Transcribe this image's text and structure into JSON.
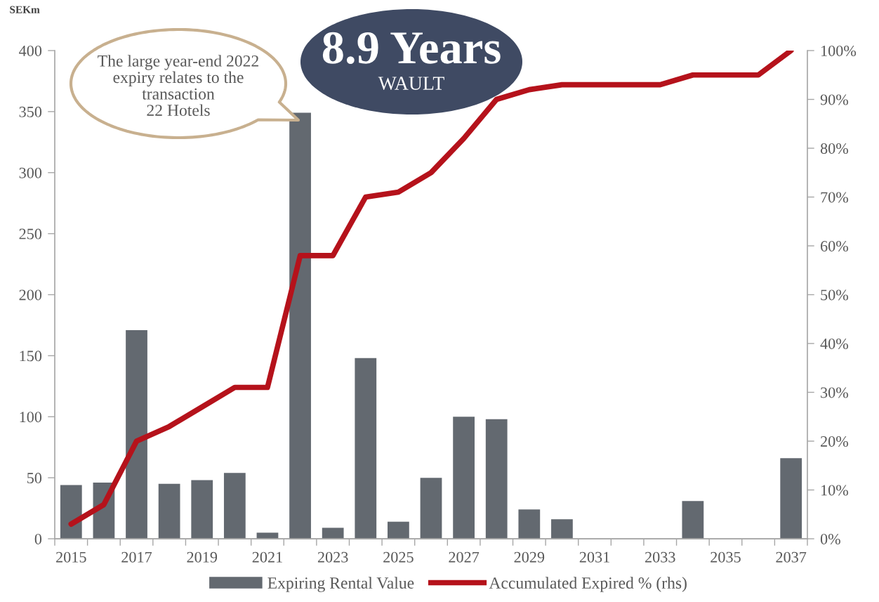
{
  "chart_data": {
    "type": "bar",
    "ylabel": "SEKm",
    "x": [
      2015,
      2016,
      2017,
      2018,
      2019,
      2020,
      2021,
      2022,
      2023,
      2024,
      2025,
      2026,
      2027,
      2028,
      2029,
      2030,
      2031,
      2032,
      2033,
      2034,
      2035,
      2036,
      2037
    ],
    "series": [
      {
        "name": "Expiring Rental Value",
        "color": "#636970",
        "values": [
          44,
          46,
          171,
          45,
          48,
          54,
          5,
          349,
          9,
          148,
          14,
          50,
          100,
          98,
          24,
          16,
          0,
          0,
          0,
          31,
          0,
          0,
          66
        ]
      },
      {
        "name": "Accumulated Expired % (rhs)",
        "type": "line",
        "axis": "y2",
        "color": "#b5121b",
        "values": [
          3,
          7,
          20,
          23,
          27,
          31,
          31,
          58,
          58,
          70,
          71,
          75,
          82,
          90,
          92,
          93,
          93,
          93,
          93,
          95,
          95,
          95,
          100
        ]
      }
    ],
    "xlim": [
      2014.5,
      2037.5
    ],
    "xticks": [
      2015,
      2017,
      2019,
      2021,
      2023,
      2025,
      2027,
      2029,
      2031,
      2033,
      2035,
      2037,
      {
        "value": 2014.5,
        "label": null
      },
      {
        "value": 2015.5,
        "label": null
      },
      {
        "value": 2016.5,
        "label": null
      },
      {
        "value": 2017.5,
        "label": null
      },
      {
        "value": 2018.5,
        "label": null
      },
      {
        "value": 2019.5,
        "label": null
      },
      {
        "value": 2020.5,
        "label": null
      },
      {
        "value": 2021.5,
        "label": null
      },
      {
        "value": 2022.5,
        "label": null
      },
      {
        "value": 2023.5,
        "label": null
      },
      {
        "value": 2024.5,
        "label": null
      },
      {
        "value": 2025.5,
        "label": null
      },
      {
        "value": 2026.5,
        "label": null
      },
      {
        "value": 2027.5,
        "label": null
      },
      {
        "value": 2028.5,
        "label": null
      },
      {
        "value": 2029.5,
        "label": null
      },
      {
        "value": 2030.5,
        "label": null
      },
      {
        "value": 2031.5,
        "label": null
      },
      {
        "value": 2032.5,
        "label": null
      },
      {
        "value": 2033.5,
        "label": null
      },
      {
        "value": 2034.5,
        "label": null
      },
      {
        "value": 2035.5,
        "label": null
      },
      {
        "value": 2036.5,
        "label": null
      },
      {
        "value": 2037.5,
        "label": null
      }
    ],
    "ylim": [
      0,
      400
    ],
    "yticks": [
      0,
      50,
      100,
      150,
      200,
      250,
      300,
      350,
      400
    ],
    "y2lim": [
      0,
      100
    ],
    "y2ticks": [
      {
        "value": 0,
        "label": "0%"
      },
      {
        "value": 10,
        "label": "10%"
      },
      {
        "value": 20,
        "label": "20%"
      },
      {
        "value": 30,
        "label": "30%"
      },
      {
        "value": 40,
        "label": "40%"
      },
      {
        "value": 50,
        "label": "50%"
      },
      {
        "value": 60,
        "label": "60%"
      },
      {
        "value": 70,
        "label": "70%"
      },
      {
        "value": 80,
        "label": "80%"
      },
      {
        "value": 90,
        "label": "90%"
      },
      {
        "value": 100,
        "label": "100%"
      }
    ],
    "legend": "bottom",
    "annotations": [
      "The large year-end 2022\nexpiry relates to the\ntransaction\n22 Hotels",
      "8.9 Years",
      "WAULT"
    ]
  }
}
